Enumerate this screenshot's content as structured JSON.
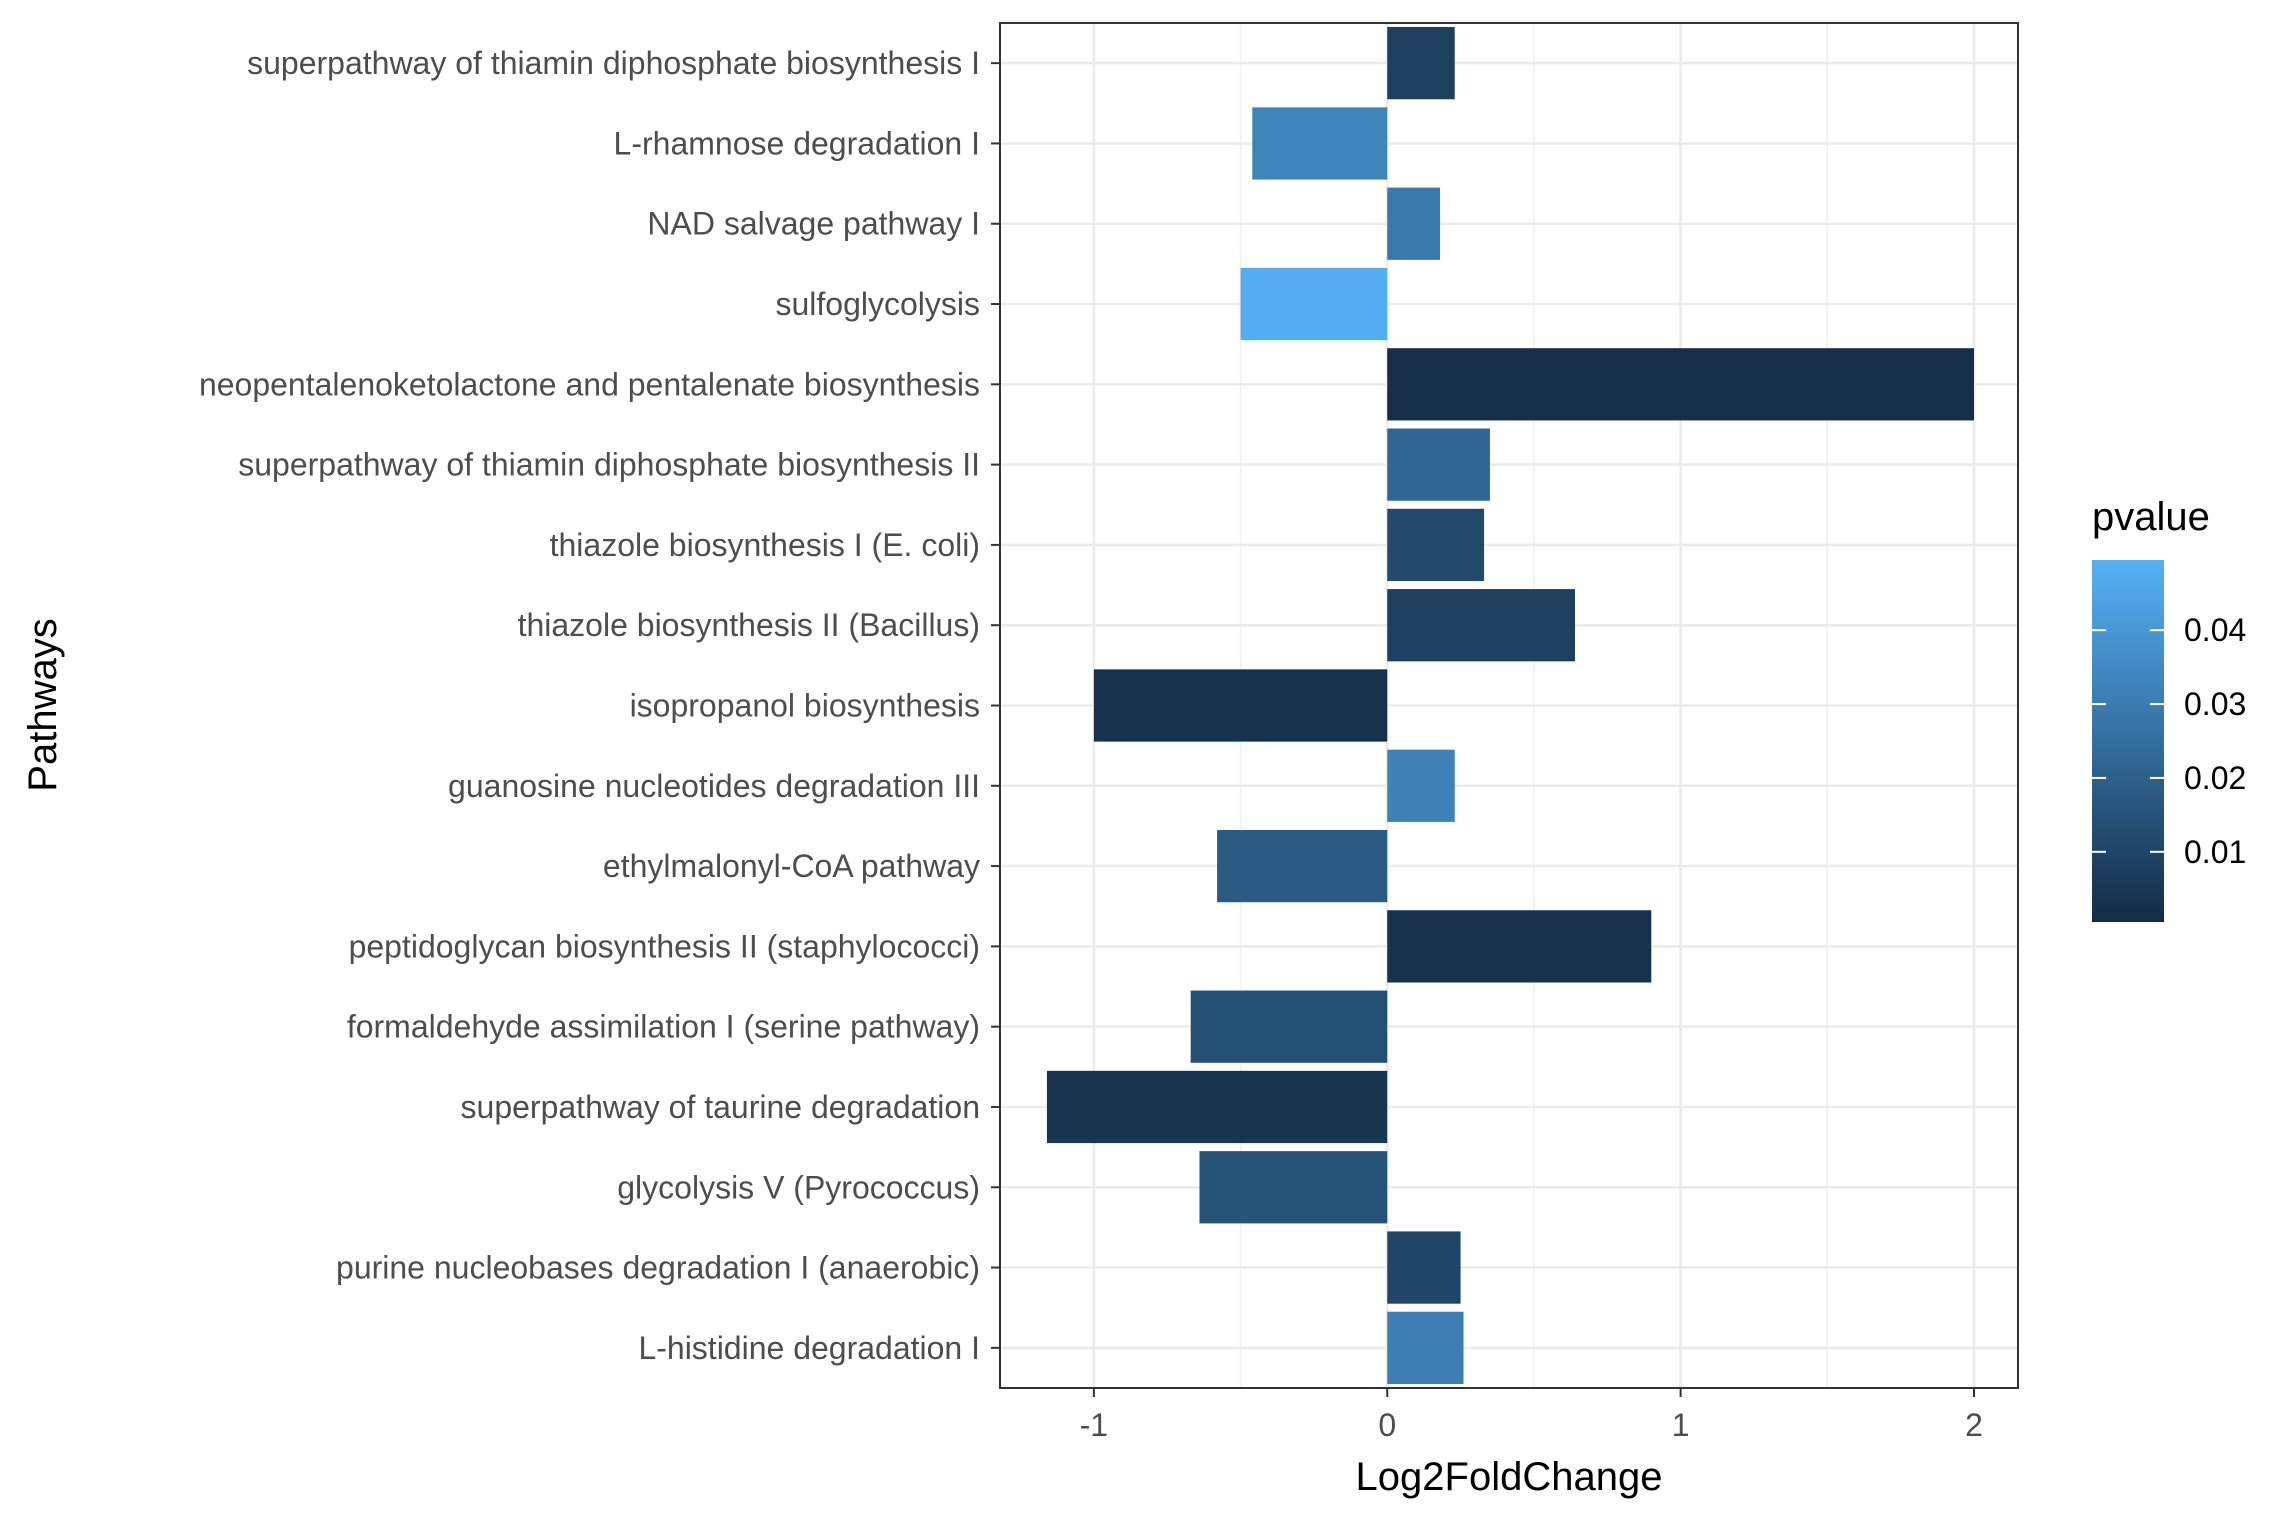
{
  "chart_data": {
    "type": "bar",
    "orientation": "horizontal",
    "xlabel": "Log2FoldChange",
    "ylabel": "Pathways",
    "xlim": [
      -1.32,
      2.15
    ],
    "x_ticks": [
      -1,
      0,
      1,
      2
    ],
    "x_tick_labels": [
      "-1",
      "0",
      "1",
      "2"
    ],
    "grid": true,
    "legend_position": "right",
    "categories": [
      "superpathway of thiamin diphosphate biosynthesis I",
      "L-rhamnose degradation I",
      "NAD salvage pathway I",
      "sulfoglycolysis",
      "neopentalenoketolactone and pentalenate biosynthesis",
      "superpathway of thiamin diphosphate biosynthesis II",
      "thiazole biosynthesis I (E. coli)",
      "thiazole biosynthesis II (Bacillus)",
      "isopropanol biosynthesis",
      "guanosine nucleotides degradation III",
      "ethylmalonyl-CoA pathway",
      "peptidoglycan biosynthesis II (staphylococci)",
      "formaldehyde assimilation I (serine pathway)",
      "superpathway of taurine degradation",
      "glycolysis V (Pyrococcus)",
      "purine nucleobases degradation I (anaerobic)",
      "L-histidine degradation I"
    ],
    "values": [
      0.23,
      -0.46,
      0.18,
      -0.5,
      2.0,
      0.35,
      0.33,
      0.64,
      -1.0,
      0.23,
      -0.58,
      0.9,
      -0.67,
      -1.16,
      -0.64,
      0.25,
      0.26
    ],
    "pvalue": [
      0.008,
      0.033,
      0.029,
      0.048,
      0.002,
      0.022,
      0.012,
      0.008,
      0.003,
      0.032,
      0.018,
      0.003,
      0.014,
      0.004,
      0.015,
      0.01,
      0.031
    ],
    "color_scale": {
      "title": "pvalue",
      "low": 0.0005,
      "high": 0.0495,
      "low_color": "#132b43",
      "high_color": "#56b1f7",
      "ticks": [
        0.01,
        0.02,
        0.03,
        0.04
      ],
      "tick_labels": [
        "0.01",
        "0.02",
        "0.03",
        "0.04"
      ]
    }
  }
}
